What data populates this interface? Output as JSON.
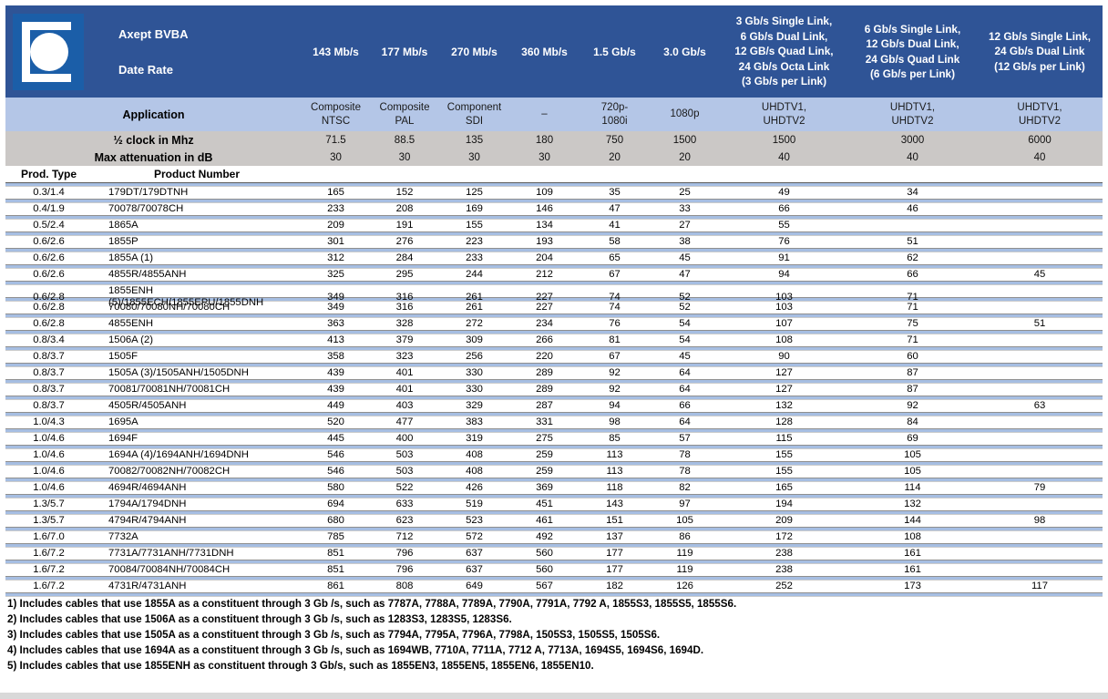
{
  "header": {
    "company": "Axept BVBA",
    "date_rate_label": "Date Rate"
  },
  "side_labels": {
    "application": "Application",
    "half_clock": "½ clock in Mhz",
    "max_attenuation": "Max attenuation in dB"
  },
  "row_header": {
    "prod_type": "Prod. Type",
    "product_number": "Product Number"
  },
  "columns": [
    {
      "rate": "143 Mb/s",
      "application": "Composite\nNTSC",
      "half_clock_mhz": "71.5",
      "max_attenuation_db": "30"
    },
    {
      "rate": "177 Mb/s",
      "application": "Composite\nPAL",
      "half_clock_mhz": "88.5",
      "max_attenuation_db": "30"
    },
    {
      "rate": "270 Mb/s",
      "application": "Component\nSDI",
      "half_clock_mhz": "135",
      "max_attenuation_db": "30"
    },
    {
      "rate": "360 Mb/s",
      "application": "–",
      "half_clock_mhz": "180",
      "max_attenuation_db": "30"
    },
    {
      "rate": "1.5 Gb/s",
      "application": "720p-\n1080i",
      "half_clock_mhz": "750",
      "max_attenuation_db": "20"
    },
    {
      "rate": "3.0 Gb/s",
      "application": "1080p",
      "half_clock_mhz": "1500",
      "max_attenuation_db": "20"
    },
    {
      "rate": "3 Gb/s Single Link,\n6 Gb/s Dual Link,\n12 GB/s Quad Link,\n24 Gb/s Octa Link\n(3 Gb/s per Link)",
      "application": "UHDTV1,\nUHDTV2",
      "half_clock_mhz": "1500",
      "max_attenuation_db": "40"
    },
    {
      "rate": "6 Gb/s Single Link,\n12 Gb/s Dual Link,\n24 Gb/s Quad Link\n(6 Gb/s per Link)",
      "application": "UHDTV1,\nUHDTV2",
      "half_clock_mhz": "3000",
      "max_attenuation_db": "40"
    },
    {
      "rate": "12 Gb/s Single Link,\n24 Gb/s Dual Link\n(12 Gb/s per Link)",
      "application": "UHDTV1,\nUHDTV2",
      "half_clock_mhz": "6000",
      "max_attenuation_db": "40"
    }
  ],
  "rows": [
    {
      "prod_type": "0.3/1.4",
      "product_number": "179DT/179DTNH",
      "values": [
        "165",
        "152",
        "125",
        "109",
        "35",
        "25",
        "49",
        "34",
        ""
      ]
    },
    {
      "prod_type": "0.4/1.9",
      "product_number": "70078/70078CH",
      "values": [
        "233",
        "208",
        "169",
        "146",
        "47",
        "33",
        "66",
        "46",
        ""
      ]
    },
    {
      "prod_type": "0.5/2.4",
      "product_number": "1865A",
      "values": [
        "209",
        "191",
        "155",
        "134",
        "41",
        "27",
        "55",
        "",
        ""
      ]
    },
    {
      "prod_type": "0.6/2.6",
      "product_number": "1855P",
      "values": [
        "301",
        "276",
        "223",
        "193",
        "58",
        "38",
        "76",
        "51",
        ""
      ]
    },
    {
      "prod_type": "0.6/2.6",
      "product_number": "1855A (1)",
      "values": [
        "312",
        "284",
        "233",
        "204",
        "65",
        "45",
        "91",
        "62",
        ""
      ]
    },
    {
      "prod_type": "0.6/2.6",
      "product_number": "4855R/4855ANH",
      "values": [
        "325",
        "295",
        "244",
        "212",
        "67",
        "47",
        "94",
        "66",
        "45"
      ]
    },
    {
      "prod_type": "0.6/2.8",
      "product_number": "1855ENH (5)/1855ECH/1855EPU/1855DNH",
      "values": [
        "349",
        "316",
        "261",
        "227",
        "74",
        "52",
        "103",
        "71",
        ""
      ]
    },
    {
      "prod_type": "0.6/2.8",
      "product_number": "70080/70080NH/70080CH",
      "values": [
        "349",
        "316",
        "261",
        "227",
        "74",
        "52",
        "103",
        "71",
        ""
      ]
    },
    {
      "prod_type": "0.6/2.8",
      "product_number": "4855ENH",
      "values": [
        "363",
        "328",
        "272",
        "234",
        "76",
        "54",
        "107",
        "75",
        "51"
      ]
    },
    {
      "prod_type": "0.8/3.4",
      "product_number": "1506A (2)",
      "values": [
        "413",
        "379",
        "309",
        "266",
        "81",
        "54",
        "108",
        "71",
        ""
      ]
    },
    {
      "prod_type": "0.8/3.7",
      "product_number": "1505F",
      "values": [
        "358",
        "323",
        "256",
        "220",
        "67",
        "45",
        "90",
        "60",
        ""
      ]
    },
    {
      "prod_type": "0.8/3.7",
      "product_number": "1505A (3)/1505ANH/1505DNH",
      "values": [
        "439",
        "401",
        "330",
        "289",
        "92",
        "64",
        "127",
        "87",
        ""
      ]
    },
    {
      "prod_type": "0.8/3.7",
      "product_number": "70081/70081NH/70081CH",
      "values": [
        "439",
        "401",
        "330",
        "289",
        "92",
        "64",
        "127",
        "87",
        ""
      ]
    },
    {
      "prod_type": "0.8/3.7",
      "product_number": "4505R/4505ANH",
      "values": [
        "449",
        "403",
        "329",
        "287",
        "94",
        "66",
        "132",
        "92",
        "63"
      ]
    },
    {
      "prod_type": "1.0/4.3",
      "product_number": "1695A",
      "values": [
        "520",
        "477",
        "383",
        "331",
        "98",
        "64",
        "128",
        "84",
        ""
      ]
    },
    {
      "prod_type": "1.0/4.6",
      "product_number": "1694F",
      "values": [
        "445",
        "400",
        "319",
        "275",
        "85",
        "57",
        "115",
        "69",
        ""
      ]
    },
    {
      "prod_type": "1.0/4.6",
      "product_number": "1694A (4)/1694ANH/1694DNH",
      "values": [
        "546",
        "503",
        "408",
        "259",
        "113",
        "78",
        "155",
        "105",
        ""
      ]
    },
    {
      "prod_type": "1.0/4.6",
      "product_number": "70082/70082NH/70082CH",
      "values": [
        "546",
        "503",
        "408",
        "259",
        "113",
        "78",
        "155",
        "105",
        ""
      ]
    },
    {
      "prod_type": "1.0/4.6",
      "product_number": "4694R/4694ANH",
      "values": [
        "580",
        "522",
        "426",
        "369",
        "118",
        "82",
        "165",
        "114",
        "79"
      ]
    },
    {
      "prod_type": "1.3/5.7",
      "product_number": "1794A/1794DNH",
      "values": [
        "694",
        "633",
        "519",
        "451",
        "143",
        "97",
        "194",
        "132",
        ""
      ]
    },
    {
      "prod_type": "1.3/5.7",
      "product_number": "4794R/4794ANH",
      "values": [
        "680",
        "623",
        "523",
        "461",
        "151",
        "105",
        "209",
        "144",
        "98"
      ]
    },
    {
      "prod_type": "1.6/7.0",
      "product_number": "7732A",
      "values": [
        "785",
        "712",
        "572",
        "492",
        "137",
        "86",
        "172",
        "108",
        ""
      ]
    },
    {
      "prod_type": "1.6/7.2",
      "product_number": "7731A/7731ANH/7731DNH",
      "values": [
        "851",
        "796",
        "637",
        "560",
        "177",
        "119",
        "238",
        "161",
        ""
      ]
    },
    {
      "prod_type": "1.6/7.2",
      "product_number": "70084/70084NH/70084CH",
      "values": [
        "851",
        "796",
        "637",
        "560",
        "177",
        "119",
        "238",
        "161",
        ""
      ]
    },
    {
      "prod_type": "1.6/7.2",
      "product_number": "4731R/4731ANH",
      "values": [
        "861",
        "808",
        "649",
        "567",
        "182",
        "126",
        "252",
        "173",
        "117"
      ]
    }
  ],
  "notes": [
    "1) Includes cables that use 1855A as a constituent through 3 Gb /s, such as 7787A, 7788A, 7789A, 7790A, 7791A, 7792 A, 1855S3, 1855S5, 1855S6.",
    "2) Includes cables that use 1506A as a constituent through 3 Gb /s, such as 1283S3, 1283S5, 1283S6.",
    "3) Includes cables that use 1505A as a constituent through 3 Gb /s, such as 7794A, 7795A, 7796A, 7798A, 1505S3, 1505S5, 1505S6.",
    "4) Includes cables that use 1694A as a constituent through 3 Gb /s, such as 1694WB, 7710A, 7711A, 7712 A, 7713A, 1694S5, 1694S6, 1694D.",
    "5) Includes cables that use 1855ENH as constituent through 3 Gb/s, such as 1855EN3, 1855EN5, 1855EN6, 1855EN10."
  ],
  "colors": {
    "header_bg": "#2F5496",
    "logo_bg": "#1B5EA8",
    "application_bg": "#B4C6E7",
    "gray_row_bg": "#CBC8C6",
    "separator": "#A6BEE2"
  }
}
